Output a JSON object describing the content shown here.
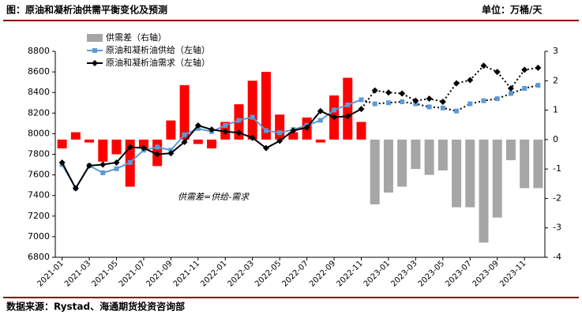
{
  "chart_data": {
    "type": "bar-line",
    "title": "图：原油和凝析油供需平衡变化及预测",
    "unit": "单位：万桶/天",
    "source": "数据来源：Rystad、海通期货投资咨询部",
    "annotation": "供需差=供给-需求",
    "categories": [
      "2021-01",
      null,
      "2021-03",
      null,
      "2021-05",
      null,
      "2021-07",
      null,
      "2021-09",
      null,
      "2021-11",
      null,
      "2022-01",
      null,
      "2022-03",
      null,
      "2022-05",
      null,
      "2022-07",
      null,
      "2022-09",
      null,
      "2022-11",
      null,
      "2023-01",
      null,
      "2023-03",
      null,
      "2023-05",
      null,
      "2023-07",
      null,
      "2023-09",
      null,
      "2023-11",
      null
    ],
    "ylim": [
      6800,
      8800
    ],
    "yticks": [
      6800,
      7000,
      7200,
      7400,
      7600,
      7800,
      8000,
      8200,
      8400,
      8600,
      8800
    ],
    "y2lim": [
      -4,
      3
    ],
    "y2ticks": [
      -4,
      -3,
      -2,
      -1,
      0,
      1,
      2,
      3
    ],
    "series": [
      {
        "name": "供需差（右轴）",
        "type": "bar",
        "axis": "y2",
        "color": "#a6a6a6",
        "colors": [
          "#ff0000",
          "#ff0000",
          "#ff0000",
          "#ff0000",
          "#ff0000",
          "#ff0000",
          "#ff0000",
          "#ff0000",
          "#ff0000",
          "#ff0000",
          "#ff0000",
          "#ff0000",
          "#ff0000",
          "#ff0000",
          "#ff0000",
          "#ff0000",
          "#ff0000",
          "#ff0000",
          "#ff0000",
          "#ff0000",
          "#ff0000",
          "#ff0000",
          "#ff0000",
          "#a6a6a6",
          "#a6a6a6",
          "#a6a6a6",
          "#a6a6a6",
          "#a6a6a6",
          "#a6a6a6",
          "#a6a6a6",
          "#a6a6a6",
          "#a6a6a6",
          "#a6a6a6",
          "#a6a6a6",
          "#a6a6a6",
          "#a6a6a6"
        ],
        "values": [
          -0.3,
          0.25,
          -0.1,
          -0.75,
          -0.5,
          -1.6,
          -0.3,
          -0.9,
          0.65,
          1.85,
          -0.15,
          -0.3,
          0.6,
          1.2,
          2.0,
          2.3,
          0.85,
          0.25,
          0.75,
          -0.1,
          1.5,
          2.1,
          0.6,
          -2.2,
          -1.8,
          -1.6,
          -1.0,
          -1.2,
          -1.05,
          -2.3,
          -2.3,
          -3.5,
          -2.65,
          -0.7,
          -1.65,
          -1.65
        ]
      },
      {
        "name": "原油和凝析油供给（左轴）",
        "type": "line",
        "color": "#5b9bd5",
        "marker": "square",
        "dotted_from": 22,
        "values": [
          7700,
          7470,
          7690,
          7620,
          7660,
          7720,
          7840,
          7870,
          7840,
          7990,
          8050,
          8020,
          8080,
          8130,
          8160,
          8030,
          8010,
          8040,
          8080,
          8130,
          8230,
          8280,
          8330,
          8290,
          8300,
          8310,
          8290,
          8260,
          8250,
          8220,
          8290,
          8320,
          8340,
          8390,
          8440,
          8470
        ]
      },
      {
        "name": "原油和凝析油需求（左轴）",
        "type": "line",
        "color": "#000000",
        "marker": "diamond",
        "dotted_from": 22,
        "values": [
          7720,
          7470,
          7690,
          7700,
          7720,
          7870,
          7860,
          7800,
          7810,
          7920,
          8080,
          8040,
          8020,
          8010,
          7960,
          7860,
          7930,
          8030,
          8060,
          8220,
          8160,
          8170,
          8240,
          8420,
          8400,
          8390,
          8320,
          8340,
          8310,
          8490,
          8520,
          8660,
          8600,
          8440,
          8620,
          8640
        ]
      }
    ]
  }
}
